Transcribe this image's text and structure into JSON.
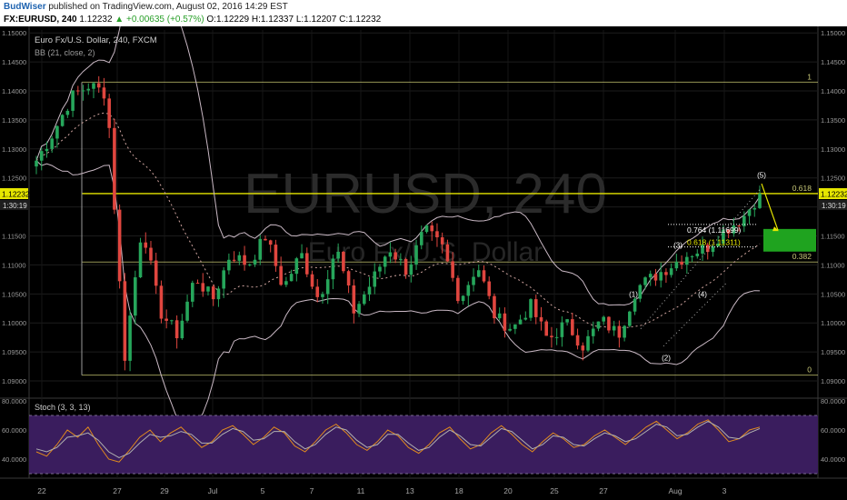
{
  "header": {
    "author": "BudWiser",
    "published_text": "published on TradingView.com, August 02, 2016 14:29 EST",
    "symbol": "FX:EURUSD, 240",
    "last": "1.12232",
    "change": "▲ +0.00635 (+0.57%)",
    "open_label": "O:",
    "open": "1.12229",
    "high_label": "H:",
    "high": "1.12337",
    "low_label": "L:",
    "low": "1.12207",
    "close_label": "C:",
    "close": "1.12232"
  },
  "pane": {
    "title": "Euro Fx/U.S. Dollar, 240, FXCM",
    "bb_label": "BB (21, close, 2)",
    "watermark_symbol": "EURUSD, 240",
    "watermark_name": "Euro Fx/U.S. Dollar",
    "price_tag": "1.12232",
    "countdown": "1:30:19"
  },
  "colors": {
    "up": "#26a65b",
    "down": "#e0463f",
    "background": "#000000",
    "fib_line": "#d4d47a",
    "price_line": "#e6e600",
    "target_box": "#1fa31f",
    "stoch_bg": "#3a1d5e",
    "stoch_k": "#e08a1e",
    "stoch_d": "#b0b0b0"
  },
  "chart_data": [
    {
      "type": "candlestick",
      "title": "Euro Fx/U.S. Dollar, 240, FXCM",
      "indicators": [
        "BB (21, close, 2)"
      ],
      "ylim": [
        1.0875,
        1.1505
      ],
      "y_ticks": [
        "1.15000",
        "1.14500",
        "1.14000",
        "1.13500",
        "1.13000",
        "1.12500",
        "1.12000",
        "1.11500",
        "1.11000",
        "1.10500",
        "1.10000",
        "1.09500",
        "1.09000"
      ],
      "y_tick_values": [
        1.15,
        1.145,
        1.14,
        1.135,
        1.13,
        1.125,
        1.12,
        1.115,
        1.11,
        1.105,
        1.1,
        1.095,
        1.09
      ],
      "x_ticks": [
        "22",
        "27",
        "29",
        "Jul",
        "5",
        "7",
        "11",
        "13",
        "18",
        "20",
        "25",
        "27",
        "Aug",
        "3"
      ],
      "price_waypoints": [
        1.128,
        1.133,
        1.139,
        1.141,
        1.1395,
        1.094,
        1.117,
        1.102,
        1.098,
        1.108,
        1.104,
        1.112,
        1.11,
        1.115,
        1.106,
        1.112,
        1.104,
        1.113,
        1.102,
        1.107,
        1.113,
        1.109,
        1.116,
        1.113,
        1.104,
        1.11,
        1.101,
        1.099,
        1.103,
        1.097,
        1.1,
        1.096,
        1.1005,
        1.098,
        1.106,
        1.108,
        1.11,
        1.112,
        1.113,
        1.116,
        1.118,
        1.1223
      ],
      "fib_levels": [
        {
          "ratio": "1",
          "price": 1.1415
        },
        {
          "ratio": "0.618",
          "price": 1.1223
        },
        {
          "ratio": "0.382",
          "price": 1.1105
        },
        {
          "ratio": "0",
          "price": 1.091
        }
      ],
      "projection_labels": [
        "0.764 (1.11699)",
        "0.618 (1.11311)"
      ],
      "wave_labels": [
        "(1)",
        "(2)",
        "(3)",
        "(4)",
        "(5)"
      ],
      "target_box": {
        "high": 1.1162,
        "low": 1.1123
      }
    },
    {
      "type": "line",
      "title": "Stoch (3, 3, 13)",
      "ylim": [
        30,
        80
      ],
      "y_ticks": [
        "80.0000",
        "60.0000",
        "40.0000"
      ],
      "y_tick_values": [
        80,
        60,
        40
      ],
      "overbought": 70,
      "oversold": 30,
      "series": [
        {
          "name": "%K",
          "values": [
            45,
            42,
            50,
            60,
            55,
            62,
            50,
            40,
            38,
            46,
            55,
            60,
            52,
            58,
            62,
            55,
            48,
            52,
            60,
            63,
            57,
            50,
            55,
            62,
            58,
            49,
            45,
            52,
            60,
            64,
            58,
            50,
            46,
            52,
            60,
            56,
            48,
            44,
            50,
            58,
            62,
            54,
            47,
            50,
            58,
            63,
            57,
            50,
            45,
            52,
            58,
            54,
            48,
            50,
            56,
            60,
            55,
            50,
            56,
            62,
            66,
            60,
            54,
            58,
            64,
            67,
            60,
            52,
            54,
            60,
            62
          ]
        },
        {
          "name": "%D",
          "values": [
            47,
            45,
            48,
            55,
            56,
            58,
            53,
            45,
            41,
            44,
            51,
            57,
            55,
            56,
            59,
            57,
            51,
            51,
            57,
            61,
            59,
            53,
            54,
            59,
            59,
            52,
            47,
            50,
            57,
            62,
            60,
            53,
            48,
            50,
            57,
            57,
            51,
            46,
            48,
            55,
            60,
            56,
            50,
            49,
            55,
            61,
            59,
            53,
            47,
            50,
            56,
            55,
            50,
            49,
            54,
            58,
            56,
            52,
            54,
            59,
            64,
            62,
            56,
            57,
            62,
            66,
            62,
            55,
            54,
            58,
            61
          ]
        }
      ]
    }
  ]
}
